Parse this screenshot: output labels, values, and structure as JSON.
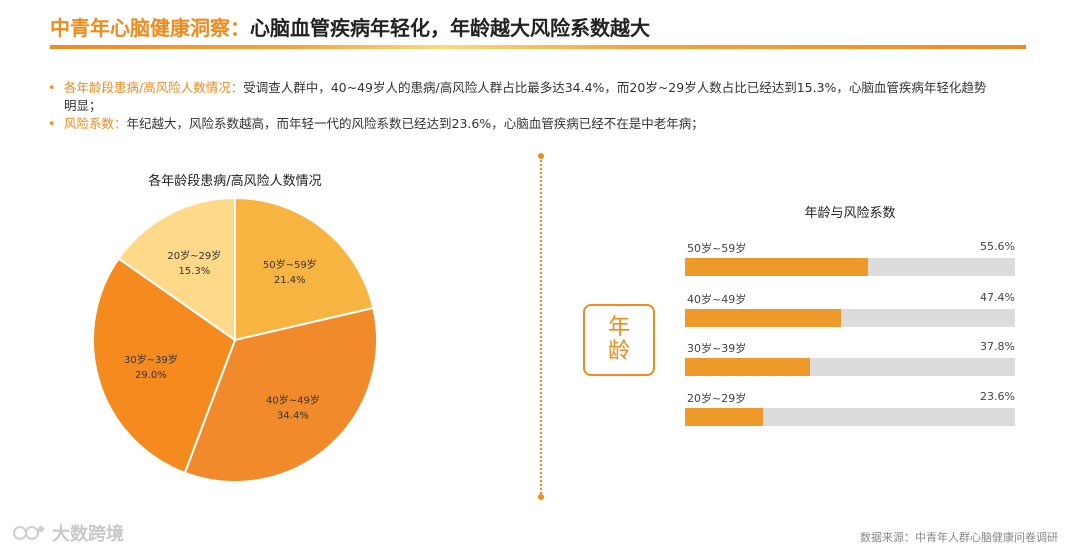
{
  "header": {
    "title_accent": "中青年心脑健康洞察：",
    "title_main": "心脑血管疾病年轻化，年龄越大风险系数越大"
  },
  "bullets": [
    {
      "label": "各年龄段患病/高风险人数情况：",
      "text": "受调查人群中，40~49岁人的患病/高风险人群占比最多达34.4%，而20岁~29岁人数占比已经达到15.3%，心脑血管疾病年轻化趋势明显；"
    },
    {
      "label": "风险系数：",
      "text": "年纪越大，风险系数越高，而年轻一代的风险系数已经达到23.6%，心脑血管疾病已经不在是中老年病；"
    }
  ],
  "age_box": {
    "line1": "年",
    "line2": "龄"
  },
  "source": "数据来源：中青年人群心脑健康问卷调研",
  "watermark": "大数跨境",
  "colors": {
    "accent": "#F08A1E",
    "pie": [
      "#F8B440",
      "#F08A2A",
      "#F58A1F",
      "#FFD98A"
    ],
    "bar_fill": "#EE9A2A",
    "bar_track": "#DCDCDC"
  },
  "chart_data": [
    {
      "type": "pie",
      "title": "各年龄段患病/高风险人数情况",
      "categories": [
        "50岁~59岁",
        "40岁~49岁",
        "30岁~39岁",
        "20岁~29岁"
      ],
      "values": [
        21.4,
        34.4,
        29.0,
        15.3
      ],
      "labels": [
        "21.4%",
        "34.4%",
        "29.0%",
        "15.3%"
      ]
    },
    {
      "type": "bar",
      "title": "年龄与风险系数",
      "categories": [
        "50岁~59岁",
        "40岁~49岁",
        "30岁~39岁",
        "20岁~29岁"
      ],
      "values": [
        55.6,
        47.4,
        37.8,
        23.6
      ],
      "labels": [
        "55.6%",
        "47.4%",
        "37.8%",
        "23.6%"
      ],
      "xlim": [
        0,
        100
      ]
    }
  ]
}
